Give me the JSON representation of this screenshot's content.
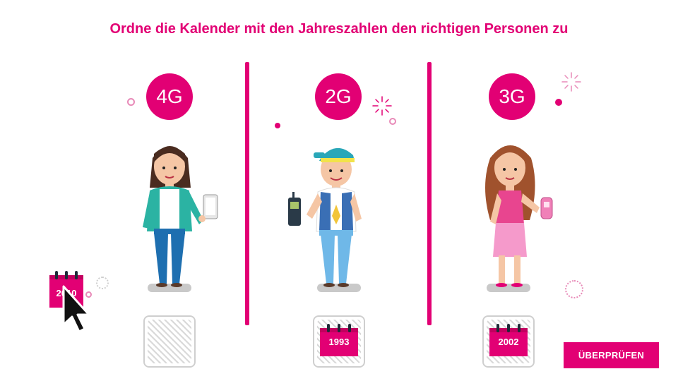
{
  "instruction": "Ordne die Kalender mit den Jahreszahlen den richtigen Personen zu",
  "columns": [
    {
      "badge": "4G",
      "person": "woman-with-smartphone",
      "slot_year": ""
    },
    {
      "badge": "2G",
      "person": "boy-with-brick-phone",
      "slot_year": "1993"
    },
    {
      "badge": "3G",
      "person": "girl-with-flip-phone",
      "slot_year": "2002"
    }
  ],
  "dragged_calendar": {
    "year": "2010"
  },
  "check_button": {
    "label": "ÜBERPRÜFEN"
  },
  "colors": {
    "accent": "#e20074",
    "hatch": "#d9d9d9",
    "text_on_accent": "#ffffff"
  }
}
